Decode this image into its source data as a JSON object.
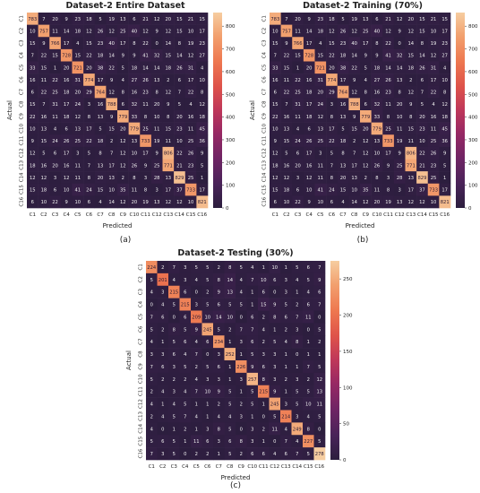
{
  "chart_data": [
    {
      "type": "heatmap",
      "panel_label": "(a)",
      "title": "Dataset-2 Entire Dataset",
      "xlabel": "Predicted",
      "ylabel": "Actual",
      "x_labels": [
        "C1",
        "C2",
        "C3",
        "C4",
        "C5",
        "C6",
        "C7",
        "C8",
        "C9",
        "C10",
        "C11",
        "C12",
        "C13",
        "C14",
        "C15",
        "C16"
      ],
      "y_labels": [
        "C1",
        "C2",
        "C3",
        "C4",
        "C5",
        "C6",
        "C7",
        "C8",
        "C9",
        "C10",
        "C11",
        "C12",
        "C13",
        "C14",
        "C15",
        "C16"
      ],
      "colorbar_ticks": [
        0,
        100,
        200,
        300,
        400,
        500,
        600,
        700,
        800
      ],
      "vmin": 0,
      "vmax": 860,
      "matrix": [
        [
          783,
          7,
          20,
          9,
          23,
          18,
          5,
          19,
          13,
          6,
          21,
          12,
          20,
          15,
          21,
          15
        ],
        [
          10,
          757,
          11,
          14,
          18,
          12,
          26,
          12,
          25,
          40,
          12,
          9,
          12,
          15,
          10,
          17
        ],
        [
          15,
          9,
          766,
          17,
          4,
          15,
          23,
          40,
          17,
          8,
          22,
          0,
          14,
          8,
          19,
          23
        ],
        [
          7,
          22,
          15,
          728,
          15,
          22,
          18,
          14,
          9,
          9,
          41,
          32,
          15,
          14,
          12,
          27
        ],
        [
          33,
          15,
          1,
          20,
          721,
          20,
          38,
          22,
          5,
          18,
          14,
          14,
          18,
          26,
          31,
          4
        ],
        [
          16,
          11,
          22,
          16,
          31,
          774,
          17,
          9,
          4,
          27,
          26,
          13,
          2,
          6,
          17,
          10
        ],
        [
          6,
          22,
          25,
          18,
          20,
          29,
          764,
          12,
          8,
          16,
          23,
          8,
          12,
          7,
          22,
          8
        ],
        [
          15,
          7,
          31,
          17,
          24,
          3,
          16,
          788,
          6,
          32,
          11,
          20,
          9,
          5,
          4,
          12
        ],
        [
          22,
          16,
          11,
          18,
          12,
          8,
          13,
          9,
          779,
          33,
          8,
          10,
          8,
          20,
          16,
          18
        ],
        [
          10,
          13,
          4,
          6,
          13,
          17,
          5,
          15,
          20,
          779,
          25,
          11,
          15,
          23,
          11,
          45
        ],
        [
          9,
          15,
          24,
          26,
          25,
          22,
          18,
          2,
          12,
          13,
          733,
          19,
          11,
          10,
          25,
          36
        ],
        [
          12,
          5,
          6,
          17,
          3,
          5,
          8,
          7,
          12,
          10,
          17,
          9,
          806,
          22,
          26,
          9
        ],
        [
          18,
          16,
          20,
          16,
          11,
          7,
          13,
          17,
          12,
          26,
          9,
          25,
          771,
          21,
          23,
          5
        ],
        [
          12,
          12,
          3,
          12,
          11,
          8,
          20,
          13,
          2,
          8,
          3,
          28,
          13,
          829,
          25,
          1
        ],
        [
          15,
          18,
          6,
          10,
          41,
          24,
          15,
          10,
          35,
          11,
          8,
          3,
          17,
          37,
          733,
          17
        ],
        [
          6,
          10,
          22,
          9,
          10,
          6,
          4,
          14,
          12,
          20,
          19,
          13,
          12,
          12,
          10,
          821
        ]
      ]
    },
    {
      "type": "heatmap",
      "panel_label": "(b)",
      "title": "Dataset-2 Training (70%)",
      "xlabel": "Predicted",
      "ylabel": "Actual",
      "x_labels": [
        "C1",
        "C2",
        "C3",
        "C4",
        "C5",
        "C6",
        "C7",
        "C8",
        "C9",
        "C10",
        "C11",
        "C12",
        "C13",
        "C14",
        "C15",
        "C16"
      ],
      "y_labels": [
        "C1",
        "C2",
        "C3",
        "C4",
        "C5",
        "C6",
        "C7",
        "C8",
        "C9",
        "C10",
        "C11",
        "C12",
        "C13",
        "C14",
        "C15",
        "C16"
      ],
      "colorbar_ticks": [
        0,
        100,
        200,
        300,
        400,
        500,
        600,
        700,
        800
      ],
      "vmin": 0,
      "vmax": 860,
      "matrix": [
        [
          783,
          7,
          20,
          9,
          23,
          18,
          5,
          19,
          13,
          6,
          21,
          12,
          20,
          15,
          21,
          15
        ],
        [
          10,
          757,
          11,
          14,
          18,
          12,
          26,
          12,
          25,
          40,
          12,
          9,
          12,
          15,
          10,
          17
        ],
        [
          15,
          9,
          766,
          17,
          4,
          15,
          23,
          40,
          17,
          8,
          22,
          0,
          14,
          8,
          19,
          23
        ],
        [
          7,
          22,
          15,
          728,
          15,
          22,
          18,
          14,
          9,
          9,
          41,
          32,
          15,
          14,
          12,
          27
        ],
        [
          33,
          15,
          1,
          20,
          721,
          20,
          38,
          22,
          5,
          18,
          14,
          14,
          18,
          26,
          31,
          4
        ],
        [
          16,
          11,
          22,
          16,
          31,
          774,
          17,
          9,
          4,
          27,
          26,
          13,
          2,
          6,
          17,
          10
        ],
        [
          6,
          22,
          25,
          18,
          20,
          29,
          764,
          12,
          8,
          16,
          23,
          8,
          12,
          7,
          22,
          8
        ],
        [
          15,
          7,
          31,
          17,
          24,
          3,
          16,
          788,
          6,
          32,
          11,
          20,
          9,
          5,
          4,
          12
        ],
        [
          22,
          16,
          11,
          18,
          12,
          8,
          13,
          9,
          779,
          33,
          8,
          10,
          8,
          20,
          16,
          18
        ],
        [
          10,
          13,
          4,
          6,
          13,
          17,
          5,
          15,
          20,
          779,
          25,
          11,
          15,
          23,
          11,
          45
        ],
        [
          9,
          15,
          24,
          26,
          25,
          22,
          18,
          2,
          12,
          13,
          733,
          19,
          11,
          10,
          25,
          36
        ],
        [
          12,
          5,
          6,
          17,
          3,
          5,
          8,
          7,
          12,
          10,
          17,
          9,
          806,
          22,
          26,
          9
        ],
        [
          18,
          16,
          20,
          16,
          11,
          7,
          13,
          17,
          12,
          26,
          9,
          25,
          771,
          21,
          23,
          5
        ],
        [
          12,
          12,
          3,
          12,
          11,
          8,
          20,
          13,
          2,
          8,
          3,
          28,
          13,
          829,
          25,
          1
        ],
        [
          15,
          18,
          6,
          10,
          41,
          24,
          15,
          10,
          35,
          11,
          8,
          3,
          17,
          37,
          733,
          17
        ],
        [
          6,
          10,
          22,
          9,
          10,
          6,
          4,
          14,
          12,
          20,
          19,
          13,
          12,
          12,
          10,
          821
        ]
      ]
    },
    {
      "type": "heatmap",
      "panel_label": "(c)",
      "title": "Dataset-2 Testing (30%)",
      "xlabel": "Predicted",
      "ylabel": "Actual",
      "x_labels": [
        "C1",
        "C2",
        "C3",
        "C4",
        "C5",
        "C6",
        "C7",
        "C8",
        "C9",
        "C10",
        "C11",
        "C12",
        "C13",
        "C14",
        "C15",
        "C16"
      ],
      "y_labels": [
        "C1",
        "C2",
        "C3",
        "C4",
        "C5",
        "C6",
        "C7",
        "C8",
        "C9",
        "C10",
        "C11",
        "C12",
        "C13",
        "C14",
        "C15",
        "C16"
      ],
      "colorbar_ticks": [
        0,
        50,
        100,
        150,
        200,
        250
      ],
      "vmin": 0,
      "vmax": 275,
      "matrix": [
        [
          224,
          2,
          7,
          3,
          5,
          5,
          2,
          8,
          5,
          4,
          1,
          10,
          1,
          5,
          6,
          7
        ],
        [
          5,
          201,
          4,
          3,
          4,
          5,
          8,
          14,
          4,
          7,
          10,
          6,
          3,
          4,
          5,
          9
        ],
        [
          4,
          3,
          215,
          6,
          0,
          2,
          9,
          13,
          4,
          1,
          6,
          0,
          3,
          1,
          4,
          6
        ],
        [
          0,
          4,
          5,
          215,
          3,
          5,
          6,
          5,
          5,
          1,
          15,
          9,
          5,
          2,
          6,
          7
        ],
        [
          7,
          6,
          0,
          6,
          209,
          10,
          14,
          10,
          0,
          6,
          2,
          8,
          6,
          7,
          11,
          0
        ],
        [
          5,
          2,
          8,
          5,
          9,
          245,
          5,
          2,
          7,
          7,
          4,
          1,
          2,
          3,
          0,
          5
        ],
        [
          4,
          1,
          5,
          6,
          4,
          6,
          234,
          1,
          3,
          6,
          2,
          5,
          4,
          8,
          1,
          2
        ],
        [
          3,
          3,
          6,
          4,
          7,
          0,
          3,
          252,
          1,
          5,
          3,
          3,
          1,
          0,
          1,
          1
        ],
        [
          7,
          6,
          3,
          5,
          2,
          5,
          6,
          1,
          226,
          9,
          6,
          3,
          1,
          1,
          7,
          5
        ],
        [
          5,
          2,
          2,
          2,
          4,
          3,
          3,
          1,
          3,
          257,
          8,
          3,
          2,
          3,
          2,
          12
        ],
        [
          2,
          4,
          3,
          4,
          7,
          10,
          9,
          5,
          1,
          5,
          215,
          9,
          1,
          5,
          5,
          13
        ],
        [
          4,
          1,
          4,
          5,
          1,
          1,
          2,
          5,
          2,
          5,
          1,
          245,
          3,
          5,
          10,
          11
        ],
        [
          2,
          4,
          5,
          7,
          4,
          1,
          4,
          4,
          3,
          1,
          0,
          5,
          214,
          3,
          4,
          5
        ],
        [
          4,
          0,
          1,
          2,
          1,
          3,
          8,
          5,
          0,
          3,
          2,
          11,
          4,
          249,
          8,
          0
        ],
        [
          5,
          6,
          5,
          1,
          11,
          6,
          3,
          6,
          8,
          3,
          1,
          0,
          7,
          4,
          227,
          5
        ],
        [
          7,
          3,
          5,
          0,
          2,
          2,
          1,
          5,
          2,
          6,
          6,
          4,
          6,
          7,
          5,
          278
        ]
      ]
    }
  ]
}
